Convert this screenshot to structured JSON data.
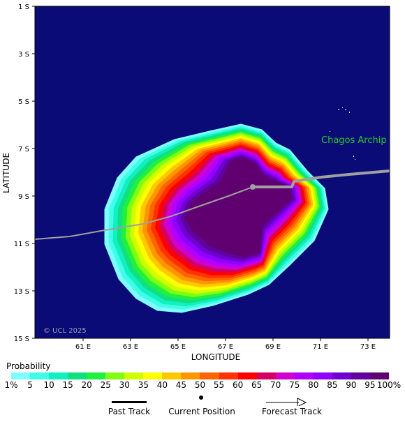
{
  "map": {
    "place_label": "Chagos Archip",
    "copyright": "© UCL 2025",
    "lat_ticks": [
      "1 S",
      "3 S",
      "5 S",
      "7 S",
      "9 S",
      "11 S",
      "13 S",
      "15 S"
    ],
    "lon_ticks": [
      "61 E",
      "63 E",
      "65 E",
      "67 E",
      "69 E",
      "71 E",
      "73 E"
    ],
    "x_axis_label": "LONGITUDE",
    "y_axis_label": "LATITUDE",
    "colors": {
      "ocean": "#0b0b78",
      "past_track": "#a0a0a0",
      "forecast_track": "#a0a0a0",
      "current_position": "#a0a0a0"
    }
  },
  "legend": {
    "title": "Probability",
    "labels": [
      "1%",
      "5",
      "10",
      "15",
      "20",
      "25",
      "30",
      "35",
      "40",
      "45",
      "50",
      "55",
      "60",
      "65",
      "70",
      "75",
      "80",
      "85",
      "90",
      "95",
      "100%"
    ],
    "colors": [
      "#80ffff",
      "#40ffe8",
      "#10f0c0",
      "#10e080",
      "#20f040",
      "#80ff10",
      "#d0ff00",
      "#ffff00",
      "#ffc800",
      "#ff9600",
      "#ff6400",
      "#ff3200",
      "#ff0000",
      "#d40060",
      "#d000d0",
      "#b000ff",
      "#9000ff",
      "#7000d0",
      "#6000a0",
      "#600070"
    ]
  },
  "track_key": {
    "past_track": "Past Track",
    "current_position": "Current Position",
    "forecast_track": "Forecast Track"
  }
}
